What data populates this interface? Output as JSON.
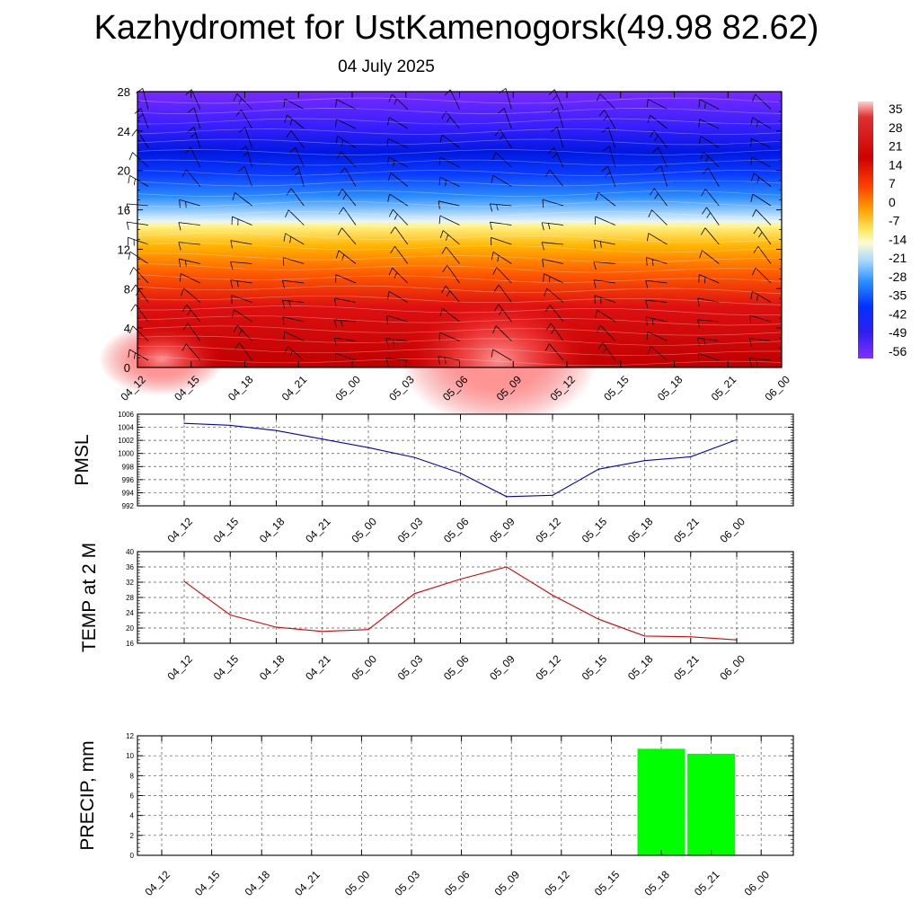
{
  "title": "Kazhydromet for UstKamenogorsk(49.98 82.62)",
  "subtitle": "04 July 2025",
  "chart_data": [
    {
      "type": "heatmap",
      "name": "vertical-cross-section",
      "x": [
        "04_12",
        "04_15",
        "04_18",
        "04_21",
        "05_00",
        "05_03",
        "05_06",
        "05_09",
        "05_12",
        "05_15",
        "05_18",
        "05_21",
        "06_00"
      ],
      "y_ticks": [
        0,
        4,
        8,
        12,
        16,
        20,
        24,
        28
      ],
      "ylim": [
        0,
        28
      ],
      "colorbar_labels": [
        "35",
        "28",
        "21",
        "14",
        "7",
        "0",
        "-7",
        "-14",
        "-21",
        "-28",
        "-35",
        "-42",
        "-49",
        "-56"
      ],
      "colorbar_range": [
        -60,
        38
      ],
      "colors": {
        "hot": "#c80000",
        "warm": "#ff8c00",
        "zero": "#fff58c",
        "cold": "#0028e6",
        "coldest": "#6e1eff"
      }
    },
    {
      "type": "line",
      "name": "pmsl",
      "ylabel": "PMSL",
      "x": [
        "04_12",
        "04_15",
        "04_18",
        "04_21",
        "05_00",
        "05_03",
        "05_06",
        "05_09",
        "05_12",
        "05_15",
        "05_18",
        "05_21",
        "06_00"
      ],
      "values": [
        1004.6,
        1004.3,
        1003.5,
        1002.2,
        1000.9,
        999.4,
        997.0,
        993.4,
        993.6,
        997.6,
        998.9,
        999.5,
        1002.1
      ],
      "ylim": [
        992,
        1006
      ],
      "y_ticks": [
        992,
        994,
        996,
        998,
        1000,
        1002,
        1004,
        1006
      ],
      "color": "#0000cc"
    },
    {
      "type": "line",
      "name": "temp2m",
      "ylabel": "TEMP at 2 M",
      "x": [
        "04_12",
        "04_15",
        "04_18",
        "04_21",
        "05_00",
        "05_03",
        "05_06",
        "05_09",
        "05_12",
        "05_15",
        "05_18",
        "05_21",
        "06_00"
      ],
      "values": [
        32.2,
        23.4,
        20.2,
        19.1,
        19.6,
        29.0,
        32.8,
        36.0,
        28.6,
        22.3,
        17.9,
        17.7,
        16.9
      ],
      "ylim": [
        16,
        40
      ],
      "y_ticks": [
        16,
        20,
        24,
        28,
        32,
        36,
        40
      ],
      "color": "#dd0000"
    },
    {
      "type": "bar",
      "name": "precip",
      "ylabel": "PRECIP, mm",
      "x": [
        "04_12",
        "04_15",
        "04_18",
        "04_21",
        "05_00",
        "05_03",
        "05_06",
        "05_09",
        "05_12",
        "05_15",
        "05_18",
        "05_21",
        "06_00"
      ],
      "values": [
        0,
        0,
        0,
        0,
        0,
        0,
        0,
        0,
        0,
        0,
        10.7,
        10.2,
        0
      ],
      "ylim": [
        0,
        12
      ],
      "y_ticks": [
        0,
        2,
        4,
        6,
        8,
        10,
        12
      ],
      "color": "#00ff00"
    }
  ]
}
